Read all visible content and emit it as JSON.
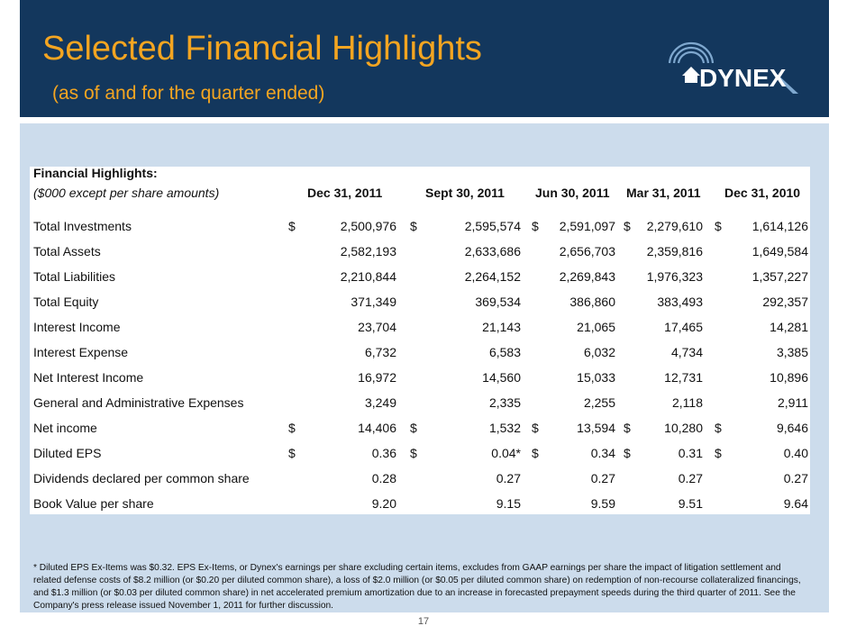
{
  "header": {
    "title": "Selected Financial Highlights",
    "subtitle": "(as of and for the quarter ended)",
    "logo_text": "DYNEX"
  },
  "table": {
    "title": "Financial Highlights:",
    "subtitle": "($000 except per share amounts)",
    "columns": [
      "Dec 31, 2011",
      "Sept 30, 2011",
      "Jun 30, 2011",
      "Mar 31, 2011",
      "Dec 31, 2010"
    ],
    "rows": [
      {
        "label": "Total Investments",
        "dollar": true,
        "values": [
          "2,500,976",
          "2,595,574",
          "2,591,097",
          "2,279,610",
          "1,614,126"
        ]
      },
      {
        "label": "Total Assets",
        "dollar": false,
        "values": [
          "2,582,193",
          "2,633,686",
          "2,656,703",
          "2,359,816",
          "1,649,584"
        ]
      },
      {
        "label": "Total Liabilities",
        "dollar": false,
        "values": [
          "2,210,844",
          "2,264,152",
          "2,269,843",
          "1,976,323",
          "1,357,227"
        ]
      },
      {
        "label": "Total Equity",
        "dollar": false,
        "values": [
          "371,349",
          "369,534",
          "386,860",
          "383,493",
          "292,357"
        ]
      },
      {
        "label": "Interest Income",
        "dollar": false,
        "values": [
          "23,704",
          "21,143",
          "21,065",
          "17,465",
          "14,281"
        ]
      },
      {
        "label": "Interest Expense",
        "dollar": false,
        "values": [
          "6,732",
          "6,583",
          "6,032",
          "4,734",
          "3,385"
        ]
      },
      {
        "label": "Net Interest Income",
        "dollar": false,
        "values": [
          "16,972",
          "14,560",
          "15,033",
          "12,731",
          "10,896"
        ]
      },
      {
        "label": "General and Administrative Expenses",
        "dollar": false,
        "values": [
          "3,249",
          "2,335",
          "2,255",
          "2,118",
          "2,911"
        ]
      },
      {
        "label": "Net income",
        "dollar": true,
        "values": [
          "14,406",
          "1,532",
          "13,594",
          "10,280",
          "9,646"
        ]
      },
      {
        "label": "Diluted EPS",
        "dollar": true,
        "values": [
          "0.36",
          "0.04*",
          "0.34",
          "0.31",
          "0.40"
        ]
      },
      {
        "label": "Dividends declared per common share",
        "dollar": false,
        "values": [
          "0.28",
          "0.27",
          "0.27",
          "0.27",
          "0.27"
        ]
      },
      {
        "label": "Book Value per share",
        "dollar": false,
        "values": [
          "9.20",
          "9.15",
          "9.59",
          "9.51",
          "9.64"
        ]
      }
    ]
  },
  "footnote": "* Diluted EPS Ex-Items was $0.32. EPS Ex-Items, or Dynex's earnings per share excluding certain items, excludes from GAAP earnings per share the impact of litigation settlement and related defense costs of $8.2 million (or $0.20 per diluted common share), a loss of $2.0 million (or $0.05 per diluted common share) on redemption of non-recourse collateralized financings, and $1.3 million (or $0.03 per diluted common share) in net accelerated premium amortization due to an increase in forecasted prepayment speeds during the third quarter of 2011. See the Company's press release issued November 1, 2011 for further discussion.",
  "page_number": "17",
  "colors": {
    "header_bg": "#13375d",
    "title": "#f4a521",
    "panel_bg": "#ccdcec"
  }
}
